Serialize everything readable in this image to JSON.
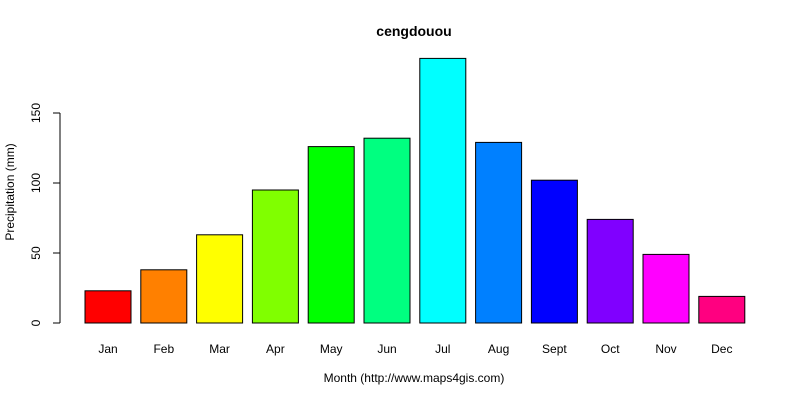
{
  "chart_data": {
    "type": "bar",
    "title": "cengdouou",
    "xlabel": "Month (http://www.maps4gis.com)",
    "ylabel": "Precipitation (mm)",
    "categories": [
      "Jan",
      "Feb",
      "Mar",
      "Apr",
      "May",
      "Jun",
      "Jul",
      "Aug",
      "Sept",
      "Oct",
      "Nov",
      "Dec"
    ],
    "values": [
      23,
      38,
      63,
      95,
      126,
      132,
      189,
      129,
      102,
      74,
      49,
      19
    ],
    "colors": [
      "#FF0000",
      "#FF8000",
      "#FFFF00",
      "#80FF00",
      "#00FF00",
      "#00FF80",
      "#00FFFF",
      "#0080FF",
      "#0000FF",
      "#8000FF",
      "#FF00FF",
      "#FF0080"
    ],
    "yticks": [
      0,
      50,
      100,
      150
    ],
    "ylim": [
      0,
      189
    ],
    "grid": false,
    "legend": "none"
  }
}
